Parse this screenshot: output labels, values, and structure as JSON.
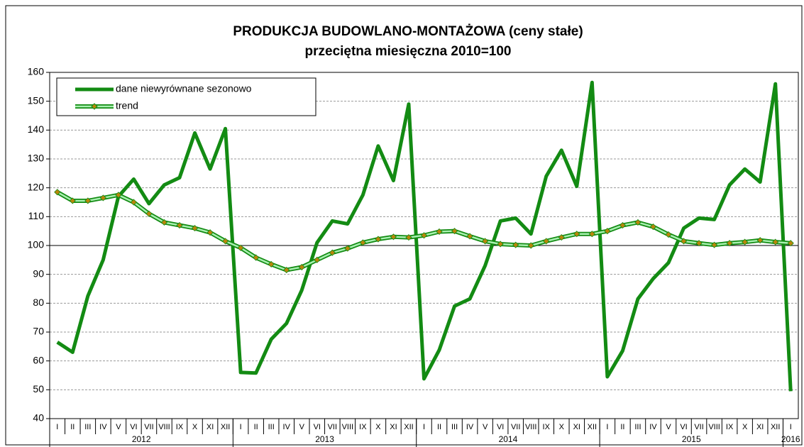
{
  "chart_data": {
    "type": "line",
    "title": "PRODUKCJA BUDOWLANO-MONTAŻOWA (ceny stałe)",
    "subtitle": "przeciętna miesięczna 2010=100",
    "categories": [
      "I",
      "II",
      "III",
      "IV",
      "V",
      "VI",
      "VII",
      "VIII",
      "IX",
      "X",
      "XI",
      "XII",
      "I",
      "II",
      "III",
      "IV",
      "V",
      "VI",
      "VII",
      "VIII",
      "IX",
      "X",
      "XI",
      "XII",
      "I",
      "II",
      "III",
      "IV",
      "V",
      "VI",
      "VII",
      "VIII",
      "IX",
      "X",
      "XI",
      "XII",
      "I",
      "II",
      "III",
      "IV",
      "V",
      "VI",
      "VII",
      "VIII",
      "IX",
      "X",
      "XI",
      "XII",
      "I"
    ],
    "years": [
      "2012",
      "2013",
      "2014",
      "2015",
      "2016"
    ],
    "series": [
      {
        "name": "dane niewyrównane sezonowo",
        "color": "#138b13",
        "values": [
          66.5,
          63,
          82.5,
          95,
          117,
          123,
          114.5,
          121,
          123.5,
          139,
          126.5,
          140.5,
          56,
          55.8,
          67.5,
          73,
          84.5,
          101,
          108.5,
          107.5,
          117.5,
          134.5,
          122.5,
          149,
          53.8,
          63.8,
          79,
          81.5,
          93,
          108.5,
          109.5,
          104,
          124,
          133,
          120.5,
          156.5,
          54.5,
          63.5,
          81.5,
          88.5,
          94,
          106,
          109.5,
          109,
          121,
          126.5,
          122,
          156,
          49.5
        ]
      },
      {
        "name": "trend",
        "color": "#a8f0b0",
        "edge": "#138b13",
        "marker": "#b8860b",
        "values": [
          118.5,
          115.5,
          115.5,
          116.5,
          117.5,
          115,
          111,
          108,
          107,
          106,
          104.5,
          101.5,
          99.2,
          95.8,
          93.5,
          91.5,
          92.5,
          95,
          97.5,
          99,
          101,
          102.2,
          103,
          102.8,
          103.5,
          104.8,
          105,
          103.2,
          101.5,
          100.5,
          100.2,
          100,
          101.5,
          102.8,
          104,
          104,
          105,
          107,
          108,
          106.5,
          103.8,
          101.5,
          100.8,
          100.2,
          100.8,
          101.2,
          101.8,
          101.2,
          100.8
        ]
      }
    ],
    "ylim": [
      40,
      160
    ],
    "yticks": [
      40,
      50,
      60,
      70,
      80,
      90,
      100,
      110,
      120,
      130,
      140,
      150,
      160
    ],
    "reference_line": 100,
    "grid": true,
    "legend": "top-left"
  }
}
